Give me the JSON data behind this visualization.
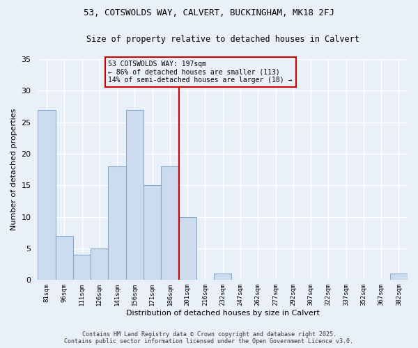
{
  "title1": "53, COTSWOLDS WAY, CALVERT, BUCKINGHAM, MK18 2FJ",
  "title2": "Size of property relative to detached houses in Calvert",
  "xlabel": "Distribution of detached houses by size in Calvert",
  "ylabel": "Number of detached properties",
  "bar_labels": [
    "81sqm",
    "96sqm",
    "111sqm",
    "126sqm",
    "141sqm",
    "156sqm",
    "171sqm",
    "186sqm",
    "201sqm",
    "216sqm",
    "232sqm",
    "247sqm",
    "262sqm",
    "277sqm",
    "292sqm",
    "307sqm",
    "322sqm",
    "337sqm",
    "352sqm",
    "367sqm",
    "382sqm"
  ],
  "bar_values": [
    27,
    7,
    4,
    5,
    18,
    27,
    15,
    18,
    10,
    0,
    1,
    0,
    0,
    0,
    0,
    0,
    0,
    0,
    0,
    0,
    1
  ],
  "bar_color": "#ccdcee",
  "bar_edgecolor": "#88aacc",
  "vline_x": 7.5,
  "vline_color": "#cc0000",
  "annotation_text": "53 COTSWOLDS WAY: 197sqm\n← 86% of detached houses are smaller (113)\n14% of semi-detached houses are larger (18) →",
  "annotation_box_color": "#cc0000",
  "ylim": [
    0,
    35
  ],
  "yticks": [
    0,
    5,
    10,
    15,
    20,
    25,
    30,
    35
  ],
  "footer_line1": "Contains HM Land Registry data © Crown copyright and database right 2025.",
  "footer_line2": "Contains public sector information licensed under the Open Government Licence v3.0.",
  "bg_color": "#eaf0f8",
  "grid_color": "#ffffff"
}
